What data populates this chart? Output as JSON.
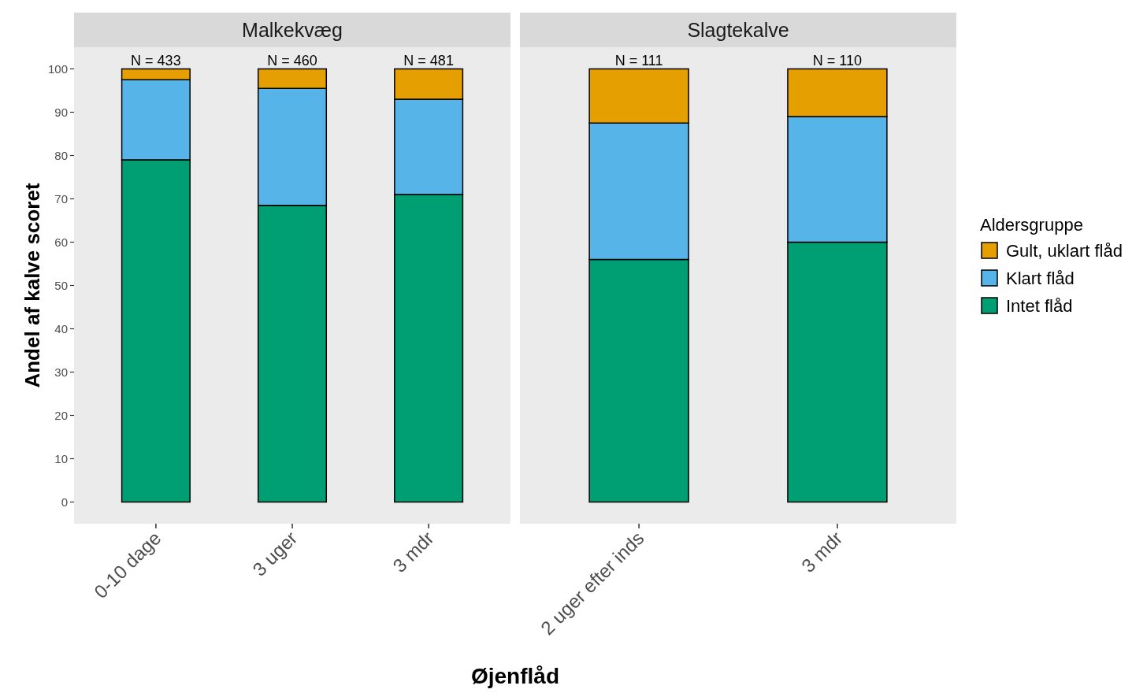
{
  "chart_data": [
    {
      "type": "bar",
      "title": "Malkekvæg",
      "xlabel": "Øjenflåd",
      "ylabel": "Andel af kalve scoret",
      "categories": [
        "0-10 dage",
        "3 uger",
        "3 mdr"
      ],
      "stacked": true,
      "ylim": [
        -5,
        105
      ],
      "yticks": [
        0,
        10,
        20,
        30,
        40,
        50,
        60,
        70,
        80,
        90,
        100
      ],
      "series": [
        {
          "color": "#009e73",
          "values": [
            79,
            68.5,
            71
          ]
        },
        {
          "color": "#56b4e9",
          "values": [
            18.5,
            27,
            22
          ]
        },
        {
          "color": "#e69f00",
          "values": [
            2.5,
            4.5,
            7
          ]
        }
      ],
      "annotations": [
        {
          "text": "N = 433",
          "x": "0-10 dage",
          "y": 100
        },
        {
          "text": "N = 460",
          "x": "3 uger",
          "y": 100
        },
        {
          "text": "N = 481",
          "x": "3 mdr",
          "y": 100
        }
      ]
    },
    {
      "type": "bar",
      "title": "Slagtekalve",
      "categories": [
        "2 uger efter inds",
        "3 mdr"
      ],
      "stacked": true,
      "ylim": [
        -5,
        105
      ],
      "tick_labels": "x",
      "legend": "right",
      "legend_title": "Aldersgruppe",
      "series": [
        {
          "name": "Intet flåd",
          "color": "#009e73",
          "values": [
            56,
            60
          ]
        },
        {
          "name": "Klart flåd",
          "color": "#56b4e9",
          "values": [
            31.5,
            29
          ]
        },
        {
          "name": "Gult, uklart flåd",
          "color": "#e69f00",
          "values": [
            12.5,
            11
          ]
        }
      ],
      "annotations": [
        {
          "text": "N = 111",
          "x": "2 uger efter inds",
          "y": 100
        },
        {
          "text": "N = 110",
          "x": "3 mdr",
          "y": 100
        }
      ]
    }
  ]
}
